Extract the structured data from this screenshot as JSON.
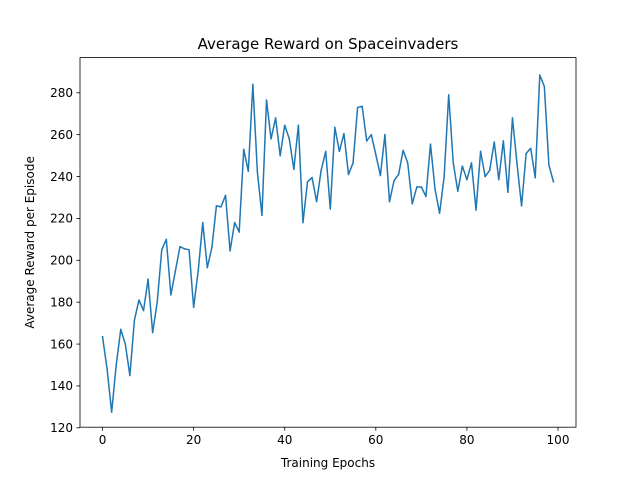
{
  "chart_data": {
    "type": "line",
    "title": "Average Reward on Spaceinvaders",
    "xlabel": "Training Epochs",
    "ylabel": "Average Reward per Episode",
    "xlim": [
      -4.95,
      103.95
    ],
    "ylim": [
      120.3,
      296.8
    ],
    "xticks": [
      0,
      20,
      40,
      60,
      80,
      100
    ],
    "yticks": [
      120,
      140,
      160,
      180,
      200,
      220,
      240,
      260,
      280
    ],
    "grid": false,
    "legend": "none",
    "series": [
      {
        "color": "#1f77b4",
        "x": [
          0,
          1,
          2,
          3,
          4,
          5,
          6,
          7,
          8,
          9,
          10,
          11,
          12,
          13,
          14,
          15,
          16,
          17,
          18,
          19,
          20,
          21,
          22,
          23,
          24,
          25,
          26,
          27,
          28,
          29,
          30,
          31,
          32,
          33,
          34,
          35,
          36,
          37,
          38,
          39,
          40,
          41,
          42,
          43,
          44,
          45,
          46,
          47,
          48,
          49,
          50,
          51,
          52,
          53,
          54,
          55,
          56,
          57,
          58,
          59,
          60,
          61,
          62,
          63,
          64,
          65,
          66,
          67,
          68,
          69,
          70,
          71,
          72,
          73,
          74,
          75,
          76,
          77,
          78,
          79,
          80,
          81,
          82,
          83,
          84,
          85,
          86,
          87,
          88,
          89,
          90,
          91,
          92,
          93,
          94,
          95,
          96,
          97,
          98,
          99
        ],
        "values": [
          163.5,
          148,
          127.5,
          150,
          167,
          160,
          145,
          171.5,
          181,
          176,
          191,
          165.5,
          180,
          205,
          210,
          183.5,
          195,
          206.5,
          205.5,
          205,
          177.5,
          195,
          218,
          196.5,
          206,
          226,
          225.5,
          231,
          204.5,
          218,
          213.5,
          253,
          242.5,
          284,
          242,
          221.5,
          276.5,
          258,
          268,
          250,
          264.5,
          258,
          243.5,
          264.5,
          218,
          237.5,
          239.5,
          228,
          243,
          252,
          224.5,
          263.5,
          252,
          260.5,
          241,
          246.5,
          273,
          273.5,
          257,
          260,
          250.5,
          240.5,
          260,
          228,
          238,
          241,
          252.5,
          246.5,
          227,
          235,
          235,
          230.5,
          255.5,
          234,
          222.5,
          240,
          279,
          246.5,
          233,
          245,
          238.5,
          246.5,
          224,
          252,
          240,
          243,
          256.5,
          238.5,
          257,
          232.5,
          268,
          246,
          226,
          251,
          253.5,
          239.5,
          288.5,
          283,
          245.5,
          237.5
        ]
      }
    ]
  }
}
